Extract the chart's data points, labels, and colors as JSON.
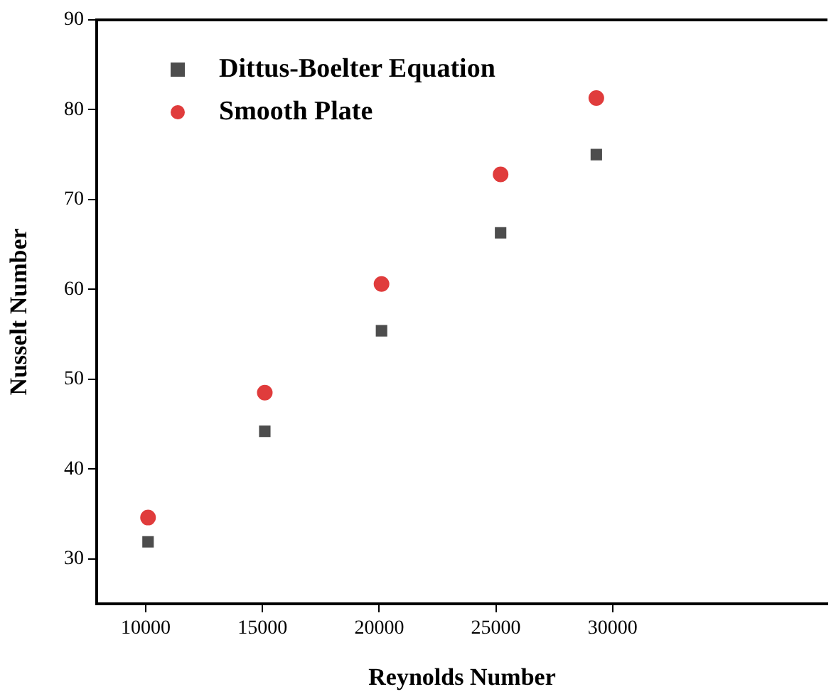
{
  "chart_data": {
    "type": "scatter",
    "xlabel": "Reynolds Number",
    "ylabel": "Nusselt Number",
    "xlim": [
      7900,
      39200
    ],
    "xticks": [
      10000,
      15000,
      20000,
      25000,
      30000
    ],
    "ylim": [
      25,
      90
    ],
    "yticks": [
      30,
      40,
      50,
      60,
      70,
      80,
      90
    ],
    "grid": false,
    "legend": "top left",
    "series": [
      {
        "name": "Dittus-Boelter Equation",
        "color": "#4d4d4d",
        "marker": "square",
        "x": [
          10100,
          15100,
          20100,
          25200,
          29300
        ],
        "values": [
          31.9,
          44.2,
          55.4,
          66.3,
          75.0
        ]
      },
      {
        "name": "Smooth Plate",
        "color": "#e03c3c",
        "marker": "circle",
        "x": [
          10100,
          15100,
          20100,
          25200,
          29300
        ],
        "values": [
          34.6,
          48.5,
          60.6,
          72.8,
          81.3
        ]
      }
    ]
  }
}
